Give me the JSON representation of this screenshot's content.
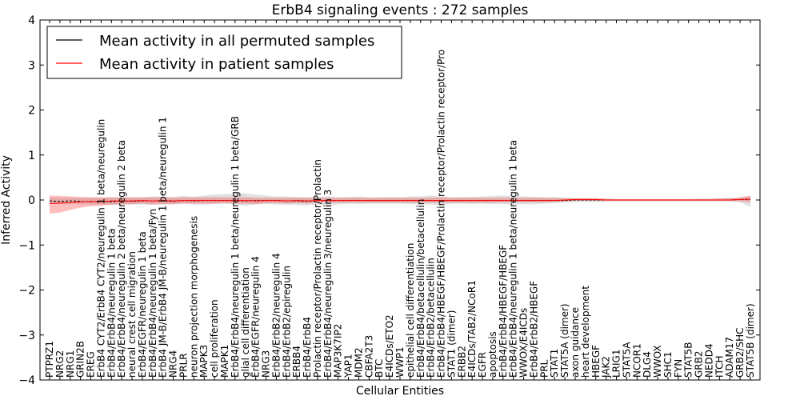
{
  "chart_data": {
    "type": "line",
    "title": "ErbB4 signaling events : 272 samples",
    "xlabel": "Cellular Entities",
    "ylabel": "Inferred Activity",
    "ylim": [
      -4,
      4
    ],
    "yticks": [
      "−4",
      "−3",
      "−2",
      "−1",
      "0",
      "1",
      "2",
      "3",
      "4"
    ],
    "legend": {
      "placement": "top-left",
      "entries": [
        {
          "label": "Mean activity in all permuted samples",
          "color": "#000000"
        },
        {
          "label": "Mean activity in patient samples",
          "color": "#ff0000"
        }
      ]
    },
    "categories": [
      "PTPRZ1",
      "NRG2",
      "NRG1",
      "GRIN2B",
      "EREG",
      "ErbB4 CYT2/ErbB4 CYT2/neuregulin 1 beta/neuregulin",
      "ErbB4/ErbB4/neuregulin 1 beta",
      "ErbB4/ErbB4/neuregulin 2 beta/neuregulin 2 beta",
      "neural crest cell migration",
      "ErbB4/EGFR/neuregulin 1 beta",
      "ErbB4/ErbB4/neuregulin 1 beta/Fyn",
      "ErbB4 JM-B/ErbB4 JM-B/neuregulin 1 beta/neuregulin 1",
      "NRG4",
      "PRLR",
      "neuron projection morphogenesis",
      "MAPK3",
      "cell proliferation",
      "MAPK1",
      "ErbB4/ErbB4/neuregulin 1 beta/neuregulin 1 beta/GRB",
      "glial cell differentiation",
      "ErbB4/EGFR/neuregulin 4",
      "NRG3",
      "ErbB4/ErbB2/neuregulin 4",
      "ErbB4/ErbB2/epiregulin",
      "ERBB4",
      "ErbB4/ErbB4",
      "Prolactin receptor/Prolactin receptor/Prolactin",
      "ErbB4/ErbB4/neuregulin 3/neuregulin 3",
      "MAP3K7IP2",
      "YAP1",
      "MDM2",
      "CBFA2T3",
      "BTC",
      "E4ICDs/ETO2",
      "WWP1",
      "epithelial cell differentiation",
      "ErbB4/ErbB4/betacellulin/betacellulin",
      "ErbB4/ErbB2/betacellulin",
      "ErbB4/ErbB4/HBEGF/HBEGF/Prolactin receptor/Prolactin receptor/Pro",
      "STAT1 (dimer)",
      "ERBB2",
      "E4ICDs/TAB2/NCoR1",
      "EGFR",
      "apoptosis",
      "ErbB4/ErbB4/HBEGF/HBEGF",
      "ErbB4/ErbB4/neuregulin 1 beta/neuregulin 1 beta",
      "WWOX/E4ICDs",
      "ErbB4/ErbB2/HBEGF",
      "PRL",
      "STAT1",
      "STAT5A (dimer)",
      "axon guidance",
      "heart development",
      "HBEGF",
      "JAK2",
      "LRIG1",
      "STAT5A",
      "NCOR1",
      "DLG4",
      "WWOX",
      "SHC1",
      "FYN",
      "STAT5B",
      "GRB2",
      "NEDD4",
      "ITCH",
      "ADAM17",
      "GRB2/SHC",
      "STAT5B (dimer)"
    ],
    "series": [
      {
        "name": "Mean activity in all permuted samples",
        "color": "#000000",
        "values": [
          -0.02,
          -0.03,
          -0.02,
          -0.03,
          -0.04,
          -0.03,
          -0.04,
          -0.02,
          -0.03,
          -0.02,
          -0.02,
          -0.02,
          -0.03,
          -0.01,
          -0.02,
          -0.01,
          -0.01,
          -0.01,
          -0.01,
          -0.02,
          -0.01,
          -0.01,
          -0.01,
          -0.02,
          -0.02,
          -0.03,
          -0.01,
          -0.02,
          -0.01,
          -0.01,
          -0.01,
          -0.01,
          -0.01,
          -0.01,
          -0.01,
          -0.01,
          -0.01,
          -0.01,
          -0.01,
          -0.01,
          -0.01,
          -0.01,
          -0.01,
          -0.01,
          -0.01,
          -0.01,
          -0.01,
          -0.01,
          -0.01,
          -0.01,
          -0.01,
          0.0,
          0.0,
          0.0,
          0.0,
          0.0,
          0.0,
          0.0,
          0.0,
          0.0,
          0.0,
          0.0,
          0.0,
          0.0,
          0.0,
          0.0,
          0.0,
          0.01,
          0.01
        ],
        "lower": [
          -0.08,
          -0.09,
          -0.08,
          -0.1,
          -0.1,
          -0.1,
          -0.12,
          -0.1,
          -0.1,
          -0.1,
          -0.1,
          -0.1,
          -0.1,
          -0.08,
          -0.1,
          -0.1,
          -0.09,
          -0.08,
          -0.1,
          -0.13,
          -0.1,
          -0.09,
          -0.1,
          -0.1,
          -0.11,
          -0.12,
          -0.09,
          -0.13,
          -0.1,
          -0.08,
          -0.09,
          -0.08,
          -0.08,
          -0.08,
          -0.08,
          -0.09,
          -0.1,
          -0.1,
          -0.11,
          -0.08,
          -0.08,
          -0.09,
          -0.08,
          -0.09,
          -0.09,
          -0.1,
          -0.09,
          -0.1,
          -0.08,
          -0.07,
          -0.06,
          -0.05,
          -0.04,
          -0.04,
          -0.04,
          -0.03,
          -0.03,
          -0.03,
          -0.03,
          -0.03,
          -0.03,
          -0.03,
          -0.03,
          -0.03,
          -0.03,
          -0.03,
          -0.03,
          -0.05,
          -0.15
        ],
        "upper": [
          0.06,
          0.05,
          0.05,
          0.05,
          0.05,
          0.05,
          0.06,
          0.06,
          0.06,
          0.06,
          0.08,
          0.07,
          0.07,
          0.09,
          0.07,
          0.1,
          0.12,
          0.13,
          0.14,
          0.15,
          0.12,
          0.1,
          0.08,
          0.08,
          0.07,
          0.06,
          0.07,
          0.08,
          0.06,
          0.07,
          0.08,
          0.06,
          0.06,
          0.07,
          0.06,
          0.08,
          0.08,
          0.1,
          0.08,
          0.06,
          0.07,
          0.07,
          0.08,
          0.09,
          0.1,
          0.08,
          0.08,
          0.07,
          0.06,
          0.06,
          0.05,
          0.04,
          0.03,
          0.03,
          0.03,
          0.02,
          0.02,
          0.02,
          0.02,
          0.02,
          0.02,
          0.02,
          0.02,
          0.03,
          0.03,
          0.04,
          0.05,
          0.05,
          0.08
        ]
      },
      {
        "name": "Mean activity in patient samples",
        "color": "#ff0000",
        "values": [
          -0.08,
          -0.07,
          -0.06,
          -0.04,
          -0.03,
          -0.04,
          -0.02,
          -0.02,
          -0.02,
          -0.01,
          -0.02,
          -0.01,
          -0.02,
          -0.01,
          -0.01,
          -0.01,
          -0.01,
          -0.01,
          -0.01,
          -0.01,
          -0.02,
          -0.01,
          -0.01,
          -0.02,
          -0.01,
          -0.02,
          -0.01,
          -0.01,
          -0.01,
          -0.01,
          -0.01,
          -0.01,
          -0.01,
          -0.01,
          -0.01,
          -0.01,
          -0.01,
          -0.01,
          -0.01,
          -0.01,
          -0.01,
          -0.01,
          -0.01,
          -0.01,
          -0.01,
          -0.01,
          -0.01,
          -0.01,
          -0.01,
          -0.01,
          0.0,
          0.01,
          0.01,
          0.01,
          0.0,
          0.0,
          0.0,
          0.0,
          0.0,
          0.0,
          0.0,
          0.0,
          0.0,
          0.0,
          0.0,
          0.0,
          0.0,
          0.01,
          0.02
        ],
        "lower": [
          -0.3,
          -0.28,
          -0.22,
          -0.17,
          -0.14,
          -0.13,
          -0.1,
          -0.1,
          -0.09,
          -0.08,
          -0.1,
          -0.09,
          -0.09,
          -0.08,
          -0.08,
          -0.08,
          -0.08,
          -0.07,
          -0.08,
          -0.08,
          -0.09,
          -0.07,
          -0.07,
          -0.08,
          -0.07,
          -0.08,
          -0.06,
          -0.06,
          -0.06,
          -0.06,
          -0.06,
          -0.06,
          -0.06,
          -0.06,
          -0.06,
          -0.06,
          -0.06,
          -0.06,
          -0.06,
          -0.06,
          -0.06,
          -0.06,
          -0.06,
          -0.06,
          -0.05,
          -0.05,
          -0.05,
          -0.05,
          -0.05,
          -0.04,
          -0.03,
          -0.02,
          -0.02,
          -0.02,
          -0.02,
          -0.02,
          -0.02,
          -0.02,
          -0.02,
          -0.02,
          -0.02,
          -0.02,
          -0.02,
          -0.02,
          -0.02,
          -0.02,
          -0.02,
          -0.03,
          -0.05
        ],
        "upper": [
          0.1,
          0.09,
          0.08,
          0.07,
          0.06,
          0.06,
          0.06,
          0.06,
          0.06,
          0.06,
          0.06,
          0.06,
          0.05,
          0.06,
          0.06,
          0.06,
          0.06,
          0.06,
          0.06,
          0.06,
          0.05,
          0.05,
          0.05,
          0.05,
          0.05,
          0.05,
          0.05,
          0.05,
          0.05,
          0.05,
          0.05,
          0.05,
          0.05,
          0.05,
          0.05,
          0.05,
          0.05,
          0.05,
          0.06,
          0.05,
          0.05,
          0.05,
          0.05,
          0.05,
          0.05,
          0.05,
          0.05,
          0.05,
          0.05,
          0.05,
          0.04,
          0.04,
          0.04,
          0.04,
          0.03,
          0.02,
          0.02,
          0.02,
          0.02,
          0.02,
          0.02,
          0.02,
          0.02,
          0.02,
          0.02,
          0.03,
          0.04,
          0.06,
          0.1
        ]
      }
    ]
  }
}
